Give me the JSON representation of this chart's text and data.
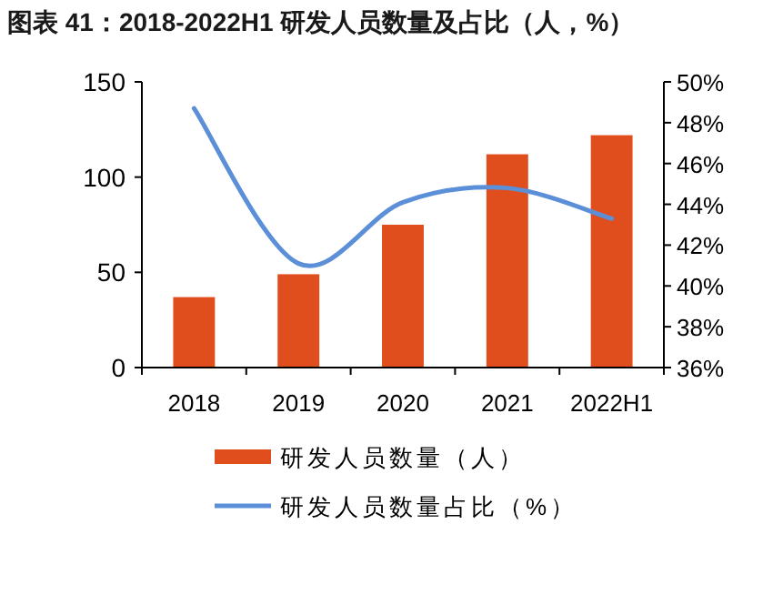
{
  "chart_data": {
    "type": "bar",
    "title": "图表 41：2018-2022H1 研发人员数量及占比（人，%）",
    "categories": [
      "2018",
      "2019",
      "2020",
      "2021",
      "2022H1"
    ],
    "series": [
      {
        "name": "研发人员数量（人）",
        "color": "#e04e1e",
        "values": [
          37,
          49,
          75,
          112,
          122
        ]
      },
      {
        "name": "研发人员数量占比（%）",
        "type": "line",
        "axis": "y2",
        "color": "#5b8fd8",
        "values": [
          48.7,
          41.1,
          44.1,
          44.8,
          43.3
        ]
      }
    ],
    "ylim": [
      0,
      150
    ],
    "yticks": [
      0,
      50,
      100,
      150
    ],
    "y2lim": [
      36,
      50
    ],
    "y2ticks": [
      {
        "value": 36,
        "label": "36%"
      },
      {
        "value": 38,
        "label": "38%"
      },
      {
        "value": 40,
        "label": "40%"
      },
      {
        "value": 42,
        "label": "42%"
      },
      {
        "value": 44,
        "label": "44%"
      },
      {
        "value": 46,
        "label": "46%"
      },
      {
        "value": 48,
        "label": "48%"
      },
      {
        "value": 50,
        "label": "50%"
      }
    ],
    "grid": false,
    "legend": "bottom"
  }
}
